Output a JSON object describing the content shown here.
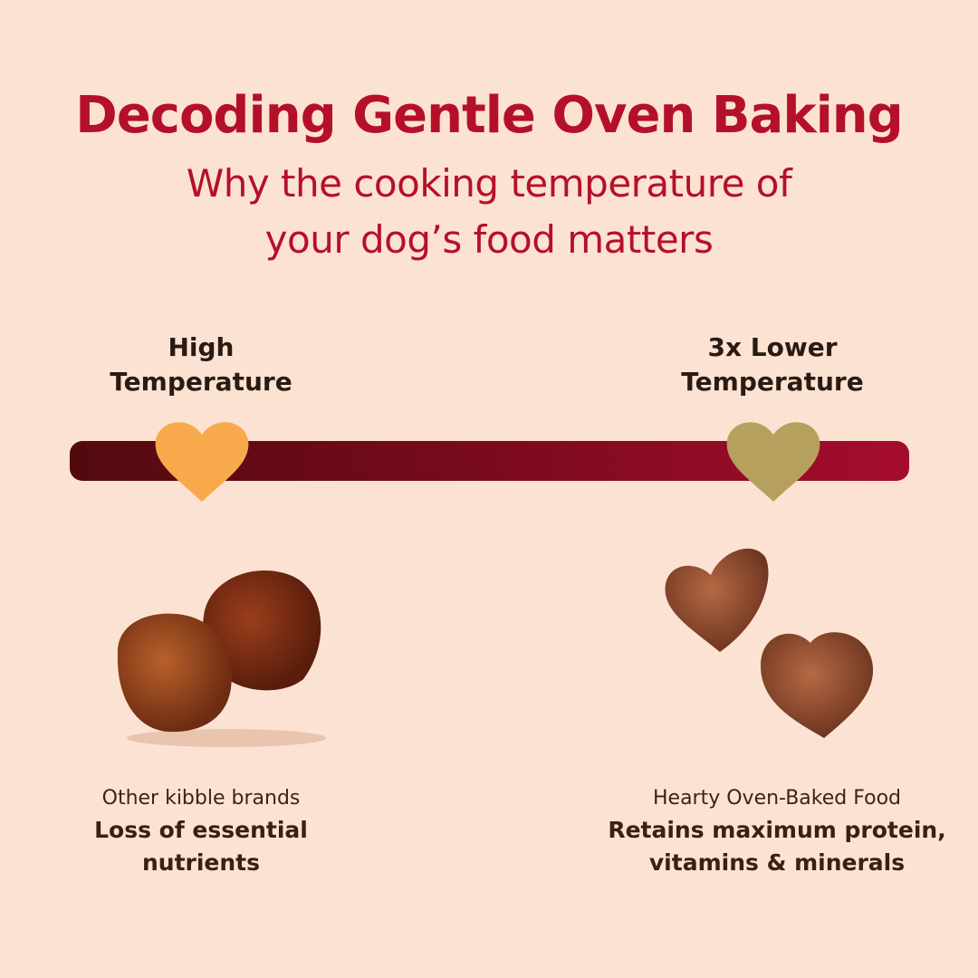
{
  "title": "Decoding Gentle Oven Baking",
  "subtitle_line1": "Why the cooking temperature of",
  "subtitle_line2": "your dog’s food matters",
  "scale": {
    "left_label_1": "High",
    "left_label_2": "Temperature",
    "right_label_1": "3x Lower",
    "right_label_2": "Temperature",
    "left_heart_color": "#f8a94b",
    "right_heart_color": "#b6a05e",
    "bar_gradient": [
      "#520a0e",
      "#a50c2e"
    ]
  },
  "left": {
    "caption": "Other kibble brands",
    "result_1": "Loss of essential",
    "result_2": "nutrients",
    "image": "round-kibble"
  },
  "right": {
    "caption": "Hearty Oven-Baked Food",
    "result_1": "Retains maximum protein,",
    "result_2": "vitamins & minerals",
    "image": "heart-shaped-kibble"
  }
}
